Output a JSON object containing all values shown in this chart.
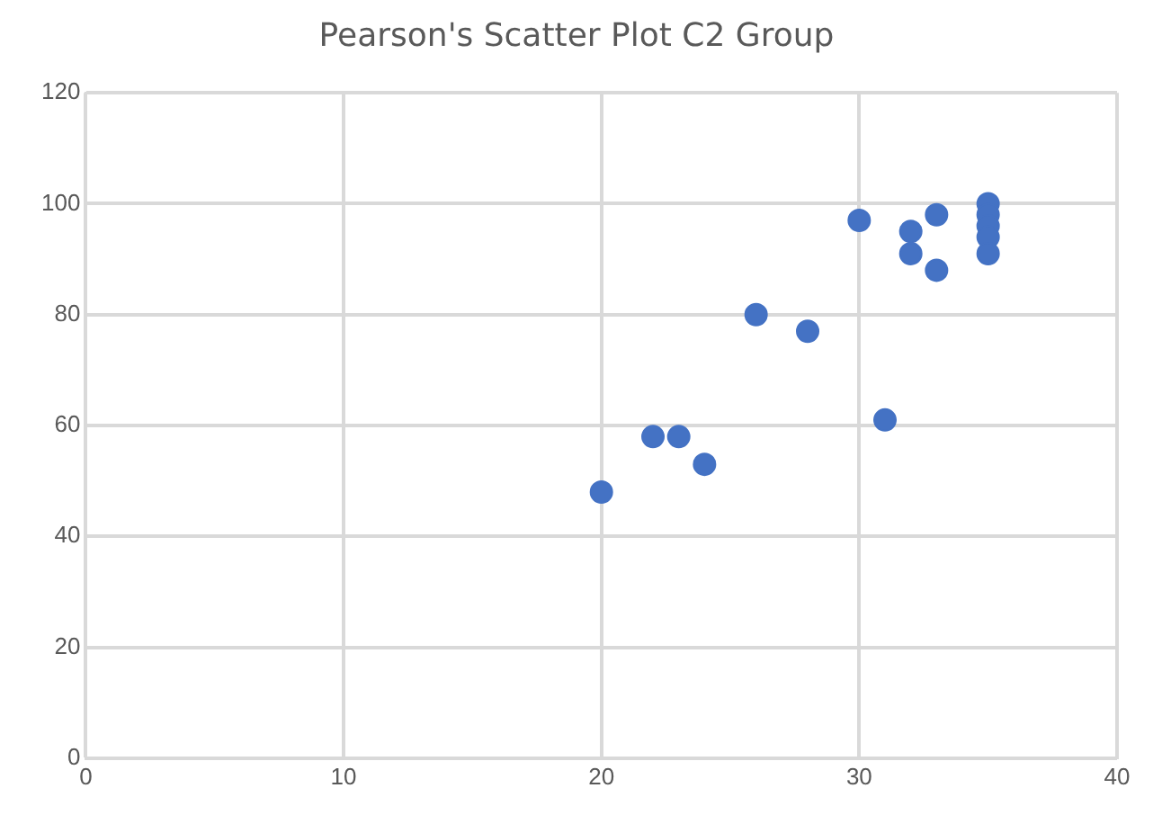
{
  "chart_data": {
    "type": "scatter",
    "title": "Pearson's Scatter Plot C2 Group",
    "x": [
      20,
      22,
      23,
      24,
      26,
      28,
      30,
      31,
      32,
      32,
      33,
      33,
      35,
      35,
      35,
      35,
      35
    ],
    "values": [
      48,
      58,
      58,
      53,
      80,
      77,
      97,
      61,
      95,
      91,
      98,
      88,
      100,
      98,
      96,
      94,
      91
    ],
    "color": "#4472c4",
    "marker": "circle",
    "xlim": [
      0,
      40
    ],
    "xticks": [
      0,
      10,
      20,
      30,
      40
    ],
    "ylim": [
      0,
      120
    ],
    "yticks": [
      0,
      20,
      40,
      60,
      80,
      100,
      120
    ],
    "grid": true,
    "legend": false
  }
}
